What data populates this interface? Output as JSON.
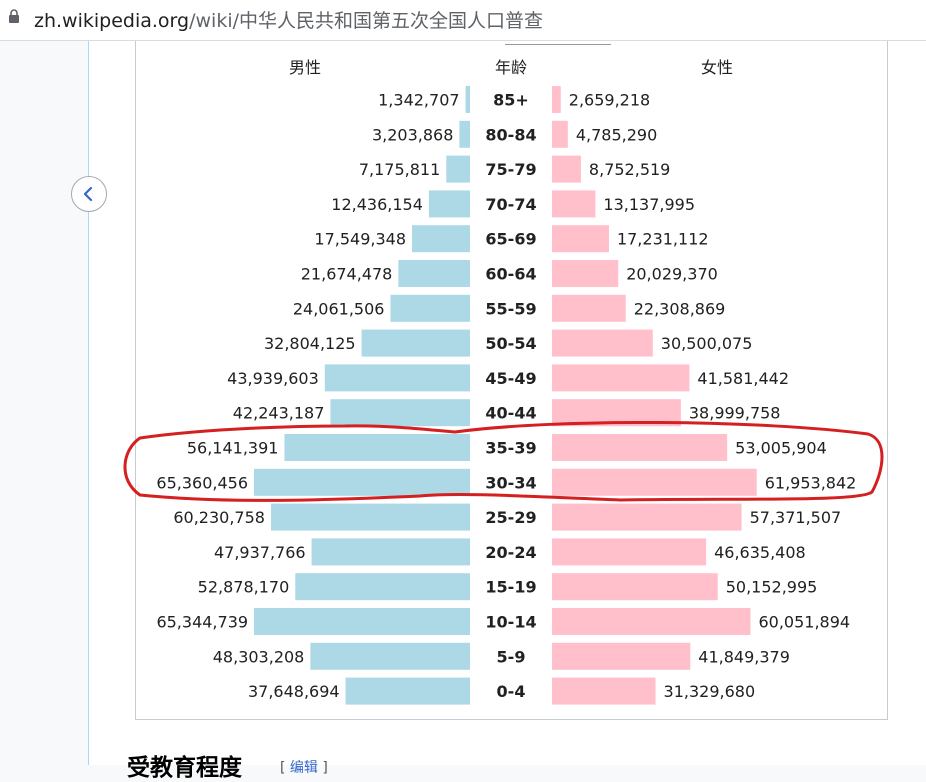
{
  "browser": {
    "url_host": "zh.wikipedia.org",
    "url_path": "/wiki/中华人民共和国第五次全国人口普查"
  },
  "page": {
    "next_heading": "受教育程度",
    "edit_link": "编辑"
  },
  "chart_data": {
    "type": "bar",
    "subtype": "population-pyramid",
    "header_left": "男性",
    "header_center": "年龄",
    "header_right": "女性",
    "categories": [
      "85+",
      "80-84",
      "75-79",
      "70-74",
      "65-69",
      "60-64",
      "55-59",
      "50-54",
      "45-49",
      "40-44",
      "35-39",
      "30-34",
      "25-29",
      "20-24",
      "15-19",
      "10-14",
      "5-9",
      "0-4"
    ],
    "series": [
      {
        "name": "男性",
        "color": "#add8e6",
        "values": [
          1342707,
          3203868,
          7175811,
          12436154,
          17549348,
          21674478,
          24061506,
          32804125,
          43939603,
          42243187,
          56141391,
          65360456,
          60230758,
          47937766,
          52878170,
          65344739,
          48303208,
          37648694
        ]
      },
      {
        "name": "女性",
        "color": "#ffc0cb",
        "values": [
          2659218,
          4785290,
          8752519,
          13137995,
          17231112,
          20029370,
          22308869,
          30500075,
          41581442,
          38999758,
          53005904,
          61953842,
          57371507,
          46635408,
          50152995,
          60051894,
          41849379,
          31329680
        ]
      }
    ],
    "labels_male": [
      "1,342,707",
      "3,203,868",
      "7,175,811",
      "12,436,154",
      "17,549,348",
      "21,674,478",
      "24,061,506",
      "32,804,125",
      "43,939,603",
      "42,243,187",
      "56,141,391",
      "65,360,456",
      "60,230,758",
      "47,937,766",
      "52,878,170",
      "65,344,739",
      "48,303,208",
      "37,648,694"
    ],
    "labels_female": [
      "2,659,218",
      "4,785,290",
      "8,752,519",
      "13,137,995",
      "17,231,112",
      "20,029,370",
      "22,308,869",
      "30,500,075",
      "41,581,442",
      "38,999,758",
      "53,005,904",
      "61,953,842",
      "57,371,507",
      "46,635,408",
      "50,152,995",
      "60,051,894",
      "41,849,379",
      "31,329,680"
    ],
    "highlighted_categories": [
      "35-39",
      "30-34"
    ],
    "highlight_color": "#d42020"
  }
}
